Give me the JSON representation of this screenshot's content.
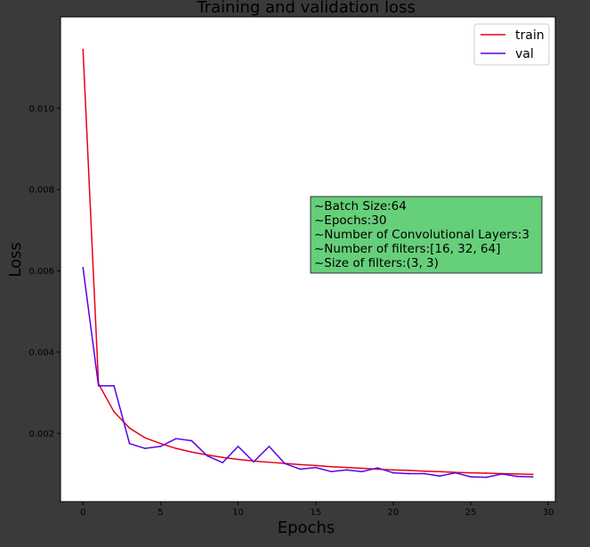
{
  "chart_data": {
    "type": "line",
    "title": "Training and validation loss",
    "xlabel": "Epochs",
    "ylabel": "Loss",
    "xlim": [
      -1.45,
      30.45
    ],
    "ylim": [
      0.00032,
      0.01225
    ],
    "x_ticks": [
      0,
      5,
      10,
      15,
      20,
      25,
      30
    ],
    "y_ticks": [
      0.002,
      0.004,
      0.006,
      0.008,
      0.01
    ],
    "x_tick_labels": [
      "0",
      "5",
      "10",
      "15",
      "20",
      "25",
      "30"
    ],
    "y_tick_labels": [
      "0.002",
      "0.004",
      "0.006",
      "0.008",
      "0.010"
    ],
    "grid": false,
    "legend_position": "top-right",
    "x": [
      0,
      1,
      2,
      3,
      4,
      5,
      6,
      7,
      8,
      9,
      10,
      11,
      12,
      13,
      14,
      15,
      16,
      17,
      18,
      19,
      20,
      21,
      22,
      23,
      24,
      25,
      26,
      27,
      28,
      29
    ],
    "series": [
      {
        "name": "train",
        "color": "#e8001c",
        "values": [
          0.01145,
          0.00322,
          0.00253,
          0.00213,
          0.00189,
          0.00175,
          0.00163,
          0.00154,
          0.00147,
          0.00141,
          0.00136,
          0.00132,
          0.00129,
          0.00126,
          0.00123,
          0.00121,
          0.00118,
          0.00116,
          0.00114,
          0.00112,
          0.0011,
          0.00109,
          0.00107,
          0.00106,
          0.00104,
          0.00103,
          0.00102,
          0.00101,
          0.001,
          0.00099
        ]
      },
      {
        "name": "val",
        "color": "#5b00e6",
        "values": [
          0.00608,
          0.00317,
          0.00317,
          0.00175,
          0.00163,
          0.00168,
          0.00187,
          0.00182,
          0.00145,
          0.00128,
          0.00168,
          0.0013,
          0.00168,
          0.00126,
          0.00112,
          0.00116,
          0.00106,
          0.0011,
          0.00106,
          0.00115,
          0.00103,
          0.00101,
          0.00101,
          0.00095,
          0.00103,
          0.00093,
          0.00092,
          0.001,
          0.00094,
          0.00093
        ]
      }
    ],
    "annotation": {
      "lines": [
        "~Batch Size:64",
        "~Epochs:30",
        "~Number of Convolutional Layers:3",
        "~Number of filters:[16, 32, 64]",
        "~Size of filters:(3, 3)"
      ],
      "background": "#66cf7a"
    }
  }
}
